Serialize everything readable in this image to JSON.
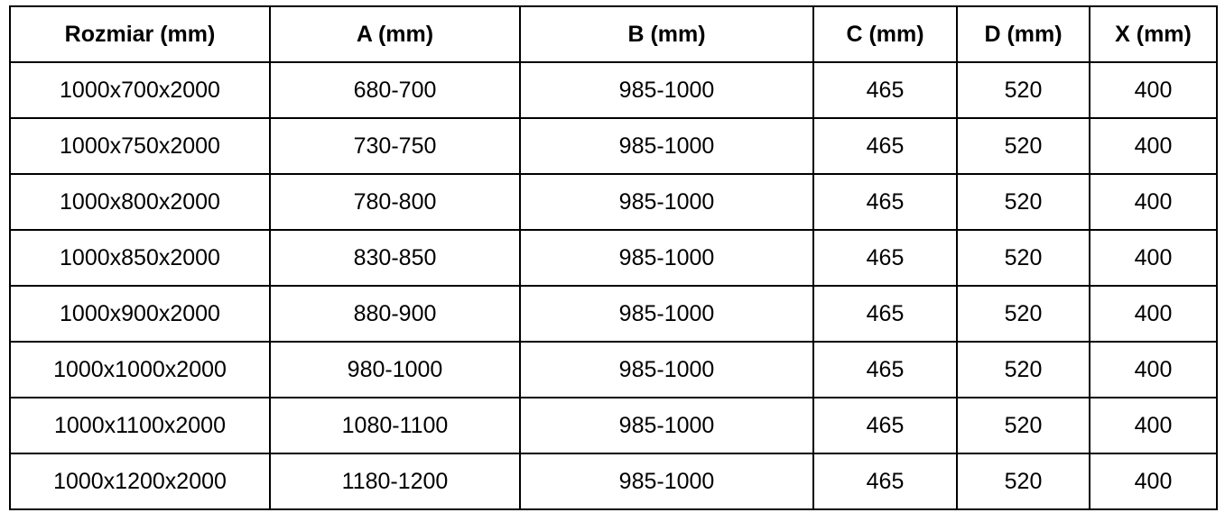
{
  "headers": [
    "Rozmiar (mm)",
    "A (mm)",
    "B (mm)",
    "C (mm)",
    "D (mm)",
    "X (mm)"
  ],
  "rows": [
    [
      "1000x700x2000",
      "680-700",
      "985-1000",
      "465",
      "520",
      "400"
    ],
    [
      "1000x750x2000",
      "730-750",
      "985-1000",
      "465",
      "520",
      "400"
    ],
    [
      "1000x800x2000",
      "780-800",
      "985-1000",
      "465",
      "520",
      "400"
    ],
    [
      "1000x850x2000",
      "830-850",
      "985-1000",
      "465",
      "520",
      "400"
    ],
    [
      "1000x900x2000",
      "880-900",
      "985-1000",
      "465",
      "520",
      "400"
    ],
    [
      "1000x1000x2000",
      "980-1000",
      "985-1000",
      "465",
      "520",
      "400"
    ],
    [
      "1000x1100x2000",
      "1080-1100",
      "985-1000",
      "465",
      "520",
      "400"
    ],
    [
      "1000x1200x2000",
      "1180-1200",
      "985-1000",
      "465",
      "520",
      "400"
    ]
  ]
}
